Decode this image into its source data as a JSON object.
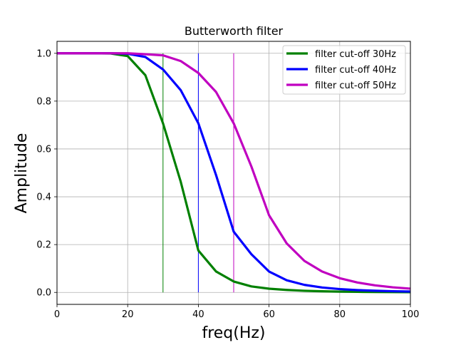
{
  "chart_data": {
    "type": "line",
    "title": "Butterworth filter",
    "xlabel": "freq(Hz)",
    "ylabel": "Amplitude",
    "xlim": [
      0,
      100
    ],
    "ylim": [
      -0.05,
      1.05
    ],
    "grid": true,
    "legend_position": "top-right",
    "x_ticks": [
      0,
      20,
      40,
      60,
      80,
      100
    ],
    "x_tick_labels": [
      "0",
      "20",
      "40",
      "60",
      "80",
      "100"
    ],
    "y_ticks": [
      0.0,
      0.2,
      0.4,
      0.6,
      0.8,
      1.0
    ],
    "y_tick_labels": [
      "0.0",
      "0.2",
      "0.4",
      "0.6",
      "0.8",
      "1.0"
    ],
    "x": [
      0,
      5,
      10,
      15,
      20,
      25,
      30,
      35,
      40,
      45,
      50,
      55,
      60,
      65,
      70,
      75,
      80,
      85,
      90,
      95,
      100
    ],
    "series": [
      {
        "name": "filter cut-off 30Hz",
        "color": "#008000",
        "values": [
          1.0,
          1.0,
          1.0,
          0.9994,
          0.9885,
          0.9084,
          0.7071,
          0.4636,
          0.1752,
          0.0877,
          0.0457,
          0.025,
          0.0156,
          0.0104,
          0.0068,
          0.0047,
          0.0033,
          0.0024,
          0.0018,
          0.0014,
          0.0011
        ]
      },
      {
        "name": "filter cut-off 40Hz",
        "color": "#0000ff",
        "values": [
          1.0,
          1.0,
          1.0,
          1.0,
          0.9981,
          0.9846,
          0.9326,
          0.8461,
          0.7071,
          0.4911,
          0.2541,
          0.1598,
          0.0873,
          0.0509,
          0.0316,
          0.0206,
          0.0139,
          0.0097,
          0.0069,
          0.005,
          0.0037
        ]
      },
      {
        "name": "filter cut-off 50Hz",
        "color": "#c000c0",
        "values": [
          1.0,
          1.0,
          1.0,
          1.0,
          1.0,
          0.9961,
          0.9915,
          0.9677,
          0.9177,
          0.8384,
          0.7071,
          0.5266,
          0.3226,
          0.2048,
          0.1318,
          0.0874,
          0.0594,
          0.0414,
          0.0295,
          0.0214,
          0.0158
        ]
      }
    ],
    "cutoff_markers": [
      {
        "x": 30,
        "color": "#008000"
      },
      {
        "x": 40,
        "color": "#0000ff"
      },
      {
        "x": 50,
        "color": "#c000c0"
      }
    ]
  }
}
